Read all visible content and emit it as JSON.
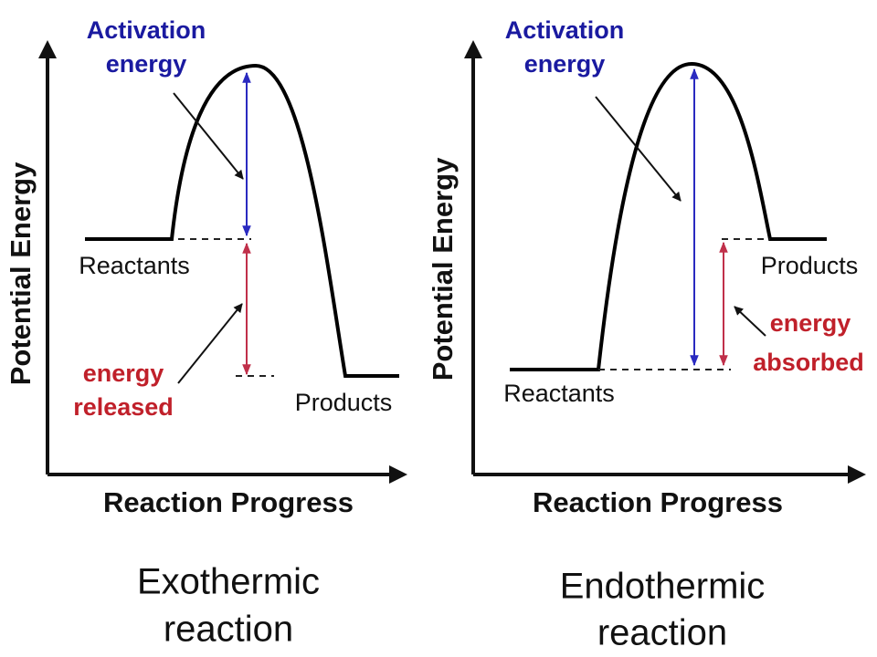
{
  "panels": [
    {
      "y_axis_label": "Potential Energy",
      "x_axis_label": "Reaction Progress",
      "activation_label": [
        "Activation",
        "energy"
      ],
      "reactants": "Reactants",
      "products": "Products",
      "energy_change_label": [
        "energy",
        "released"
      ],
      "title": [
        "Exothermic",
        "reaction"
      ]
    },
    {
      "y_axis_label": "Potential Energy",
      "x_axis_label": "Reaction Progress",
      "activation_label": [
        "Activation",
        "energy"
      ],
      "reactants": "Reactants",
      "products": "Products",
      "energy_change_label": [
        "energy",
        "absorbed"
      ],
      "title": [
        "Endothermic",
        "reaction"
      ]
    }
  ]
}
